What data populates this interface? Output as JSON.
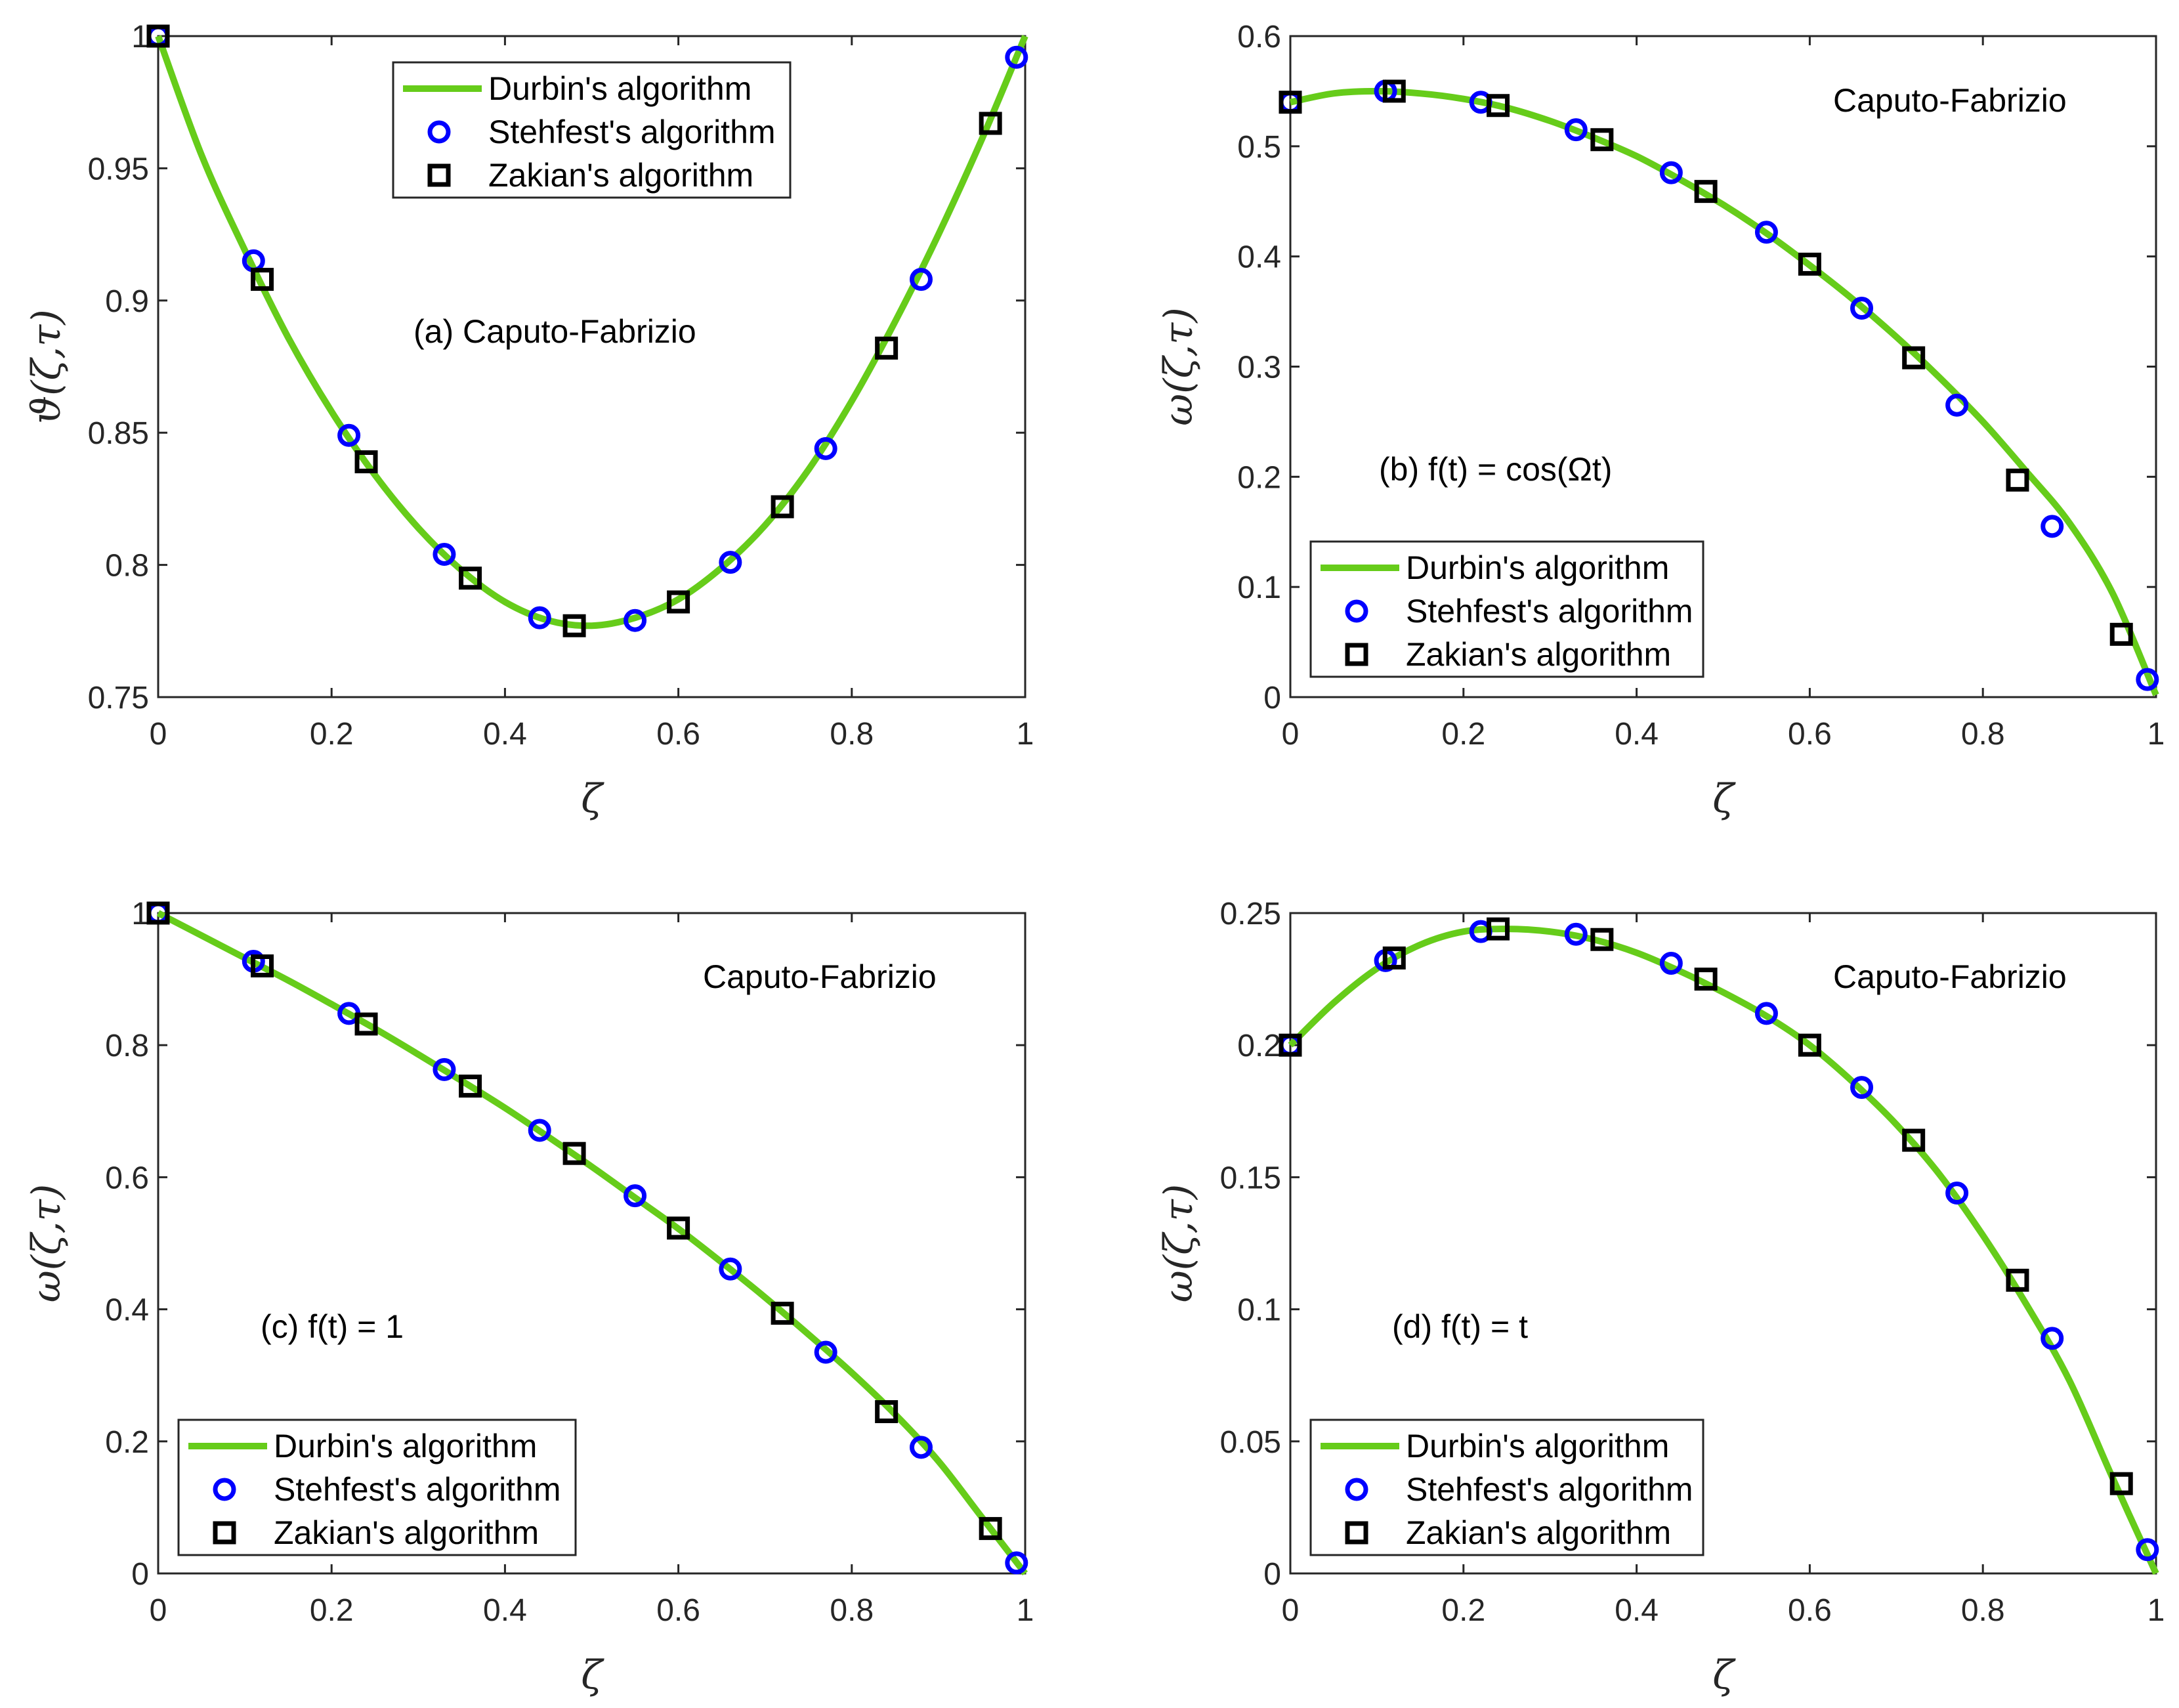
{
  "colors": {
    "durbin": "#66CC1A",
    "stehfest": "#0000FF",
    "zakian": "#000000",
    "axis": "#262626"
  },
  "legend": {
    "durbin": "Durbin's algorithm",
    "stehfest": "Stehfest's algorithm",
    "zakian": "Zakian's algorithm"
  },
  "chart_data": [
    {
      "id": "a",
      "type": "line",
      "annotations": [
        "(a) Caputo-Fabrizio"
      ],
      "xlabel": "ζ",
      "ylabel": "ϑ(ζ,τ)",
      "xlim": [
        0,
        1
      ],
      "ylim": [
        0.75,
        1
      ],
      "xticks": [
        0,
        0.2,
        0.4,
        0.6,
        0.8,
        1
      ],
      "xtick_labels": [
        "0",
        "0.2",
        "0.4",
        "0.6",
        "0.8",
        "1"
      ],
      "yticks": [
        0.75,
        0.8,
        0.85,
        0.9,
        0.95,
        1
      ],
      "ytick_labels": [
        "0.75",
        "0.8",
        "0.85",
        "0.9",
        "0.95",
        "1"
      ],
      "legend_position": "top-center",
      "series": [
        {
          "name": "Durbin's algorithm",
          "style": "line",
          "x": [
            0,
            0.05,
            0.1,
            0.15,
            0.2,
            0.25,
            0.3,
            0.35,
            0.4,
            0.45,
            0.5,
            0.55,
            0.6,
            0.65,
            0.7,
            0.75,
            0.8,
            0.85,
            0.9,
            0.95,
            1
          ],
          "y": [
            1,
            0.955,
            0.919,
            0.886,
            0.858,
            0.834,
            0.814,
            0.798,
            0.786,
            0.779,
            0.777,
            0.78,
            0.787,
            0.799,
            0.815,
            0.836,
            0.862,
            0.892,
            0.925,
            0.961,
            1
          ]
        },
        {
          "name": "Stehfest's algorithm",
          "style": "circle",
          "x": [
            0,
            0.11,
            0.22,
            0.33,
            0.44,
            0.55,
            0.66,
            0.77,
            0.88,
            0.99
          ],
          "y": [
            1,
            0.915,
            0.849,
            0.804,
            0.78,
            0.779,
            0.801,
            0.844,
            0.908,
            0.992
          ]
        },
        {
          "name": "Zakian's algorithm",
          "style": "square",
          "x": [
            0,
            0.12,
            0.24,
            0.36,
            0.48,
            0.6,
            0.72,
            0.84,
            0.96
          ],
          "y": [
            1,
            0.908,
            0.839,
            0.795,
            0.777,
            0.786,
            0.822,
            0.882,
            0.967
          ]
        }
      ]
    },
    {
      "id": "b",
      "type": "line",
      "annotations": [
        "Caputo-Fabrizio",
        "(b) f(t) = cos(Ωt)"
      ],
      "xlabel": "ζ",
      "ylabel": "ω(ζ,τ)",
      "xlim": [
        0,
        1
      ],
      "ylim": [
        0,
        0.6
      ],
      "xticks": [
        0,
        0.2,
        0.4,
        0.6,
        0.8,
        1
      ],
      "xtick_labels": [
        "0",
        "0.2",
        "0.4",
        "0.6",
        "0.8",
        "1"
      ],
      "yticks": [
        0,
        0.1,
        0.2,
        0.3,
        0.4,
        0.5,
        0.6
      ],
      "ytick_labels": [
        "0",
        "0.1",
        "0.2",
        "0.3",
        "0.4",
        "0.5",
        "0.6"
      ],
      "legend_position": "bottom-left",
      "series": [
        {
          "name": "Durbin's algorithm",
          "style": "line",
          "x": [
            0,
            0.05,
            0.1,
            0.15,
            0.2,
            0.25,
            0.3,
            0.35,
            0.4,
            0.45,
            0.5,
            0.55,
            0.6,
            0.65,
            0.7,
            0.75,
            0.8,
            0.85,
            0.9,
            0.95,
            1
          ],
          "y": [
            0.54,
            0.548,
            0.55,
            0.548,
            0.543,
            0.535,
            0.523,
            0.508,
            0.491,
            0.47,
            0.447,
            0.421,
            0.392,
            0.361,
            0.327,
            0.29,
            0.25,
            0.205,
            0.158,
            0.094,
            0.002
          ]
        },
        {
          "name": "Stehfest's algorithm",
          "style": "circle",
          "x": [
            0,
            0.11,
            0.22,
            0.33,
            0.44,
            0.55,
            0.66,
            0.77,
            0.88,
            0.99
          ],
          "y": [
            0.54,
            0.55,
            0.54,
            0.515,
            0.476,
            0.422,
            0.353,
            0.265,
            0.155,
            0.016
          ]
        },
        {
          "name": "Zakian's algorithm",
          "style": "square",
          "x": [
            0,
            0.12,
            0.24,
            0.36,
            0.48,
            0.6,
            0.72,
            0.84,
            0.96
          ],
          "y": [
            0.54,
            0.55,
            0.537,
            0.506,
            0.459,
            0.393,
            0.308,
            0.197,
            0.057
          ]
        }
      ]
    },
    {
      "id": "c",
      "type": "line",
      "annotations": [
        "Caputo-Fabrizio",
        "(c) f(t) = 1"
      ],
      "xlabel": "ζ",
      "ylabel": "ω(ζ,τ)",
      "xlim": [
        0,
        1
      ],
      "ylim": [
        0,
        1
      ],
      "xticks": [
        0,
        0.2,
        0.4,
        0.6,
        0.8,
        1
      ],
      "xtick_labels": [
        "0",
        "0.2",
        "0.4",
        "0.6",
        "0.8",
        "1"
      ],
      "yticks": [
        0,
        0.2,
        0.4,
        0.6,
        0.8,
        1
      ],
      "ytick_labels": [
        "0",
        "0.2",
        "0.4",
        "0.6",
        "0.8",
        "1"
      ],
      "legend_position": "bottom-left",
      "series": [
        {
          "name": "Durbin's algorithm",
          "style": "line",
          "x": [
            0,
            0.05,
            0.1,
            0.15,
            0.2,
            0.25,
            0.3,
            0.35,
            0.4,
            0.45,
            0.5,
            0.55,
            0.6,
            0.65,
            0.7,
            0.75,
            0.8,
            0.85,
            0.9,
            0.95,
            1
          ],
          "y": [
            1,
            0.966,
            0.932,
            0.898,
            0.862,
            0.825,
            0.786,
            0.746,
            0.705,
            0.661,
            0.616,
            0.569,
            0.522,
            0.471,
            0.418,
            0.362,
            0.304,
            0.241,
            0.17,
            0.085,
            0
          ]
        },
        {
          "name": "Stehfest's algorithm",
          "style": "circle",
          "x": [
            0,
            0.11,
            0.22,
            0.33,
            0.44,
            0.55,
            0.66,
            0.77,
            0.88,
            0.99
          ],
          "y": [
            1,
            0.927,
            0.848,
            0.763,
            0.671,
            0.572,
            0.461,
            0.335,
            0.191,
            0.016
          ]
        },
        {
          "name": "Zakian's algorithm",
          "style": "square",
          "x": [
            0,
            0.12,
            0.24,
            0.36,
            0.48,
            0.6,
            0.72,
            0.84,
            0.96
          ],
          "y": [
            1,
            0.92,
            0.832,
            0.738,
            0.636,
            0.523,
            0.394,
            0.245,
            0.068
          ]
        }
      ]
    },
    {
      "id": "d",
      "type": "line",
      "annotations": [
        "Caputo-Fabrizio",
        "(d) f(t) = t"
      ],
      "xlabel": "ζ",
      "ylabel": "ω(ζ,τ)",
      "xlim": [
        0,
        1
      ],
      "ylim": [
        0,
        0.25
      ],
      "xticks": [
        0,
        0.2,
        0.4,
        0.6,
        0.8,
        1
      ],
      "xtick_labels": [
        "0",
        "0.2",
        "0.4",
        "0.6",
        "0.8",
        "1"
      ],
      "yticks": [
        0,
        0.05,
        0.1,
        0.15,
        0.2,
        0.25
      ],
      "ytick_labels": [
        "0",
        "0.05",
        "0.1",
        "0.15",
        "0.2",
        "0.25"
      ],
      "legend_position": "bottom-left",
      "series": [
        {
          "name": "Durbin's algorithm",
          "style": "line",
          "x": [
            0,
            0.05,
            0.1,
            0.15,
            0.2,
            0.25,
            0.3,
            0.35,
            0.4,
            0.45,
            0.5,
            0.55,
            0.6,
            0.65,
            0.7,
            0.75,
            0.8,
            0.85,
            0.9,
            0.95,
            1
          ],
          "y": [
            0.2,
            0.216,
            0.229,
            0.238,
            0.243,
            0.244,
            0.243,
            0.24,
            0.235,
            0.228,
            0.22,
            0.211,
            0.2,
            0.186,
            0.17,
            0.151,
            0.128,
            0.102,
            0.073,
            0.036,
            0
          ]
        },
        {
          "name": "Stehfest's algorithm",
          "style": "circle",
          "x": [
            0,
            0.11,
            0.22,
            0.33,
            0.44,
            0.55,
            0.66,
            0.77,
            0.88,
            0.99
          ],
          "y": [
            0.2,
            0.232,
            0.243,
            0.242,
            0.231,
            0.212,
            0.184,
            0.144,
            0.089,
            0.009
          ]
        },
        {
          "name": "Zakian's algorithm",
          "style": "square",
          "x": [
            0,
            0.12,
            0.24,
            0.36,
            0.48,
            0.6,
            0.72,
            0.84,
            0.96
          ],
          "y": [
            0.2,
            0.233,
            0.244,
            0.24,
            0.225,
            0.2,
            0.164,
            0.111,
            0.034
          ]
        }
      ]
    }
  ]
}
